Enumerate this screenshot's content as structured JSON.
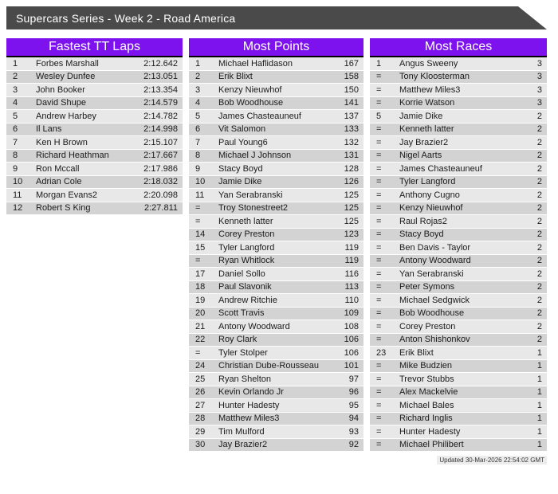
{
  "banner": {
    "title": "Supercars Series - Week 2 - Road America"
  },
  "colors": {
    "accent_purple": "#7e12ef",
    "banner_gray": "#4a4a4a",
    "row_light": "#e8e8e8",
    "row_dark": "#d3d3d3"
  },
  "tables": [
    {
      "title": "Fastest TT Laps",
      "rows": [
        [
          "1",
          "Forbes Marshall",
          "2:12.642"
        ],
        [
          "2",
          "Wesley Dunfee",
          "2:13.051"
        ],
        [
          "3",
          "John Booker",
          "2:13.354"
        ],
        [
          "4",
          "David Shupe",
          "2:14.579"
        ],
        [
          "5",
          "Andrew Harbey",
          "2:14.782"
        ],
        [
          "6",
          "Il Lans",
          "2:14.998"
        ],
        [
          "7",
          "Ken H Brown",
          "2:15.107"
        ],
        [
          "8",
          "Richard Heathman",
          "2:17.667"
        ],
        [
          "9",
          "Ron Mccall",
          "2:17.986"
        ],
        [
          "10",
          "Adrian Cole",
          "2:18.032"
        ],
        [
          "11",
          "Morgan Evans2",
          "2:20.098"
        ],
        [
          "12",
          "Robert S King",
          "2:27.811"
        ]
      ]
    },
    {
      "title": "Most Points",
      "rows": [
        [
          "1",
          "Michael Haflidason",
          "167"
        ],
        [
          "2",
          "Erik Blixt",
          "158"
        ],
        [
          "3",
          "Kenzy Nieuwhof",
          "150"
        ],
        [
          "4",
          "Bob Woodhouse",
          "141"
        ],
        [
          "5",
          "James Chasteauneuf",
          "137"
        ],
        [
          "6",
          "Vit Salomon",
          "133"
        ],
        [
          "7",
          "Paul Young6",
          "132"
        ],
        [
          "8",
          "Michael J Johnson",
          "131"
        ],
        [
          "9",
          "Stacy Boyd",
          "128"
        ],
        [
          "10",
          "Jamie Dike",
          "126"
        ],
        [
          "11",
          "Yan Serabranski",
          "125"
        ],
        [
          "=",
          "Troy Stonestreet2",
          "125"
        ],
        [
          "=",
          "Kenneth latter",
          "125"
        ],
        [
          "14",
          "Corey Preston",
          "123"
        ],
        [
          "15",
          "Tyler Langford",
          "119"
        ],
        [
          "=",
          "Ryan Whitlock",
          "119"
        ],
        [
          "17",
          "Daniel Sollo",
          "116"
        ],
        [
          "18",
          "Paul Slavonik",
          "113"
        ],
        [
          "19",
          "Andrew Ritchie",
          "110"
        ],
        [
          "20",
          "Scott Travis",
          "109"
        ],
        [
          "21",
          "Antony Woodward",
          "108"
        ],
        [
          "22",
          "Roy Clark",
          "106"
        ],
        [
          "=",
          "Tyler Stolper",
          "106"
        ],
        [
          "24",
          "Christian Dube-Rousseau",
          "101"
        ],
        [
          "25",
          "Ryan Shelton",
          "97"
        ],
        [
          "26",
          "Kevin Orlando Jr",
          "96"
        ],
        [
          "27",
          "Hunter Hadesty",
          "95"
        ],
        [
          "28",
          "Matthew Miles3",
          "94"
        ],
        [
          "29",
          "Tim Mulford",
          "93"
        ],
        [
          "30",
          "Jay Brazier2",
          "92"
        ]
      ]
    },
    {
      "title": "Most Races",
      "rows": [
        [
          "1",
          "Angus Sweeny",
          "3"
        ],
        [
          "=",
          "Tony Kloosterman",
          "3"
        ],
        [
          "=",
          "Matthew Miles3",
          "3"
        ],
        [
          "=",
          "Korrie Watson",
          "3"
        ],
        [
          "5",
          "Jamie Dike",
          "2"
        ],
        [
          "=",
          "Kenneth latter",
          "2"
        ],
        [
          "=",
          "Jay Brazier2",
          "2"
        ],
        [
          "=",
          "Nigel Aarts",
          "2"
        ],
        [
          "=",
          "James Chasteauneuf",
          "2"
        ],
        [
          "=",
          "Tyler Langford",
          "2"
        ],
        [
          "=",
          "Anthony Cugno",
          "2"
        ],
        [
          "=",
          "Kenzy Nieuwhof",
          "2"
        ],
        [
          "=",
          "Raul Rojas2",
          "2"
        ],
        [
          "=",
          "Stacy Boyd",
          "2"
        ],
        [
          "=",
          "Ben Davis - Taylor",
          "2"
        ],
        [
          "=",
          "Antony Woodward",
          "2"
        ],
        [
          "=",
          "Yan Serabranski",
          "2"
        ],
        [
          "=",
          "Peter Symons",
          "2"
        ],
        [
          "=",
          "Michael Sedgwick",
          "2"
        ],
        [
          "=",
          "Bob Woodhouse",
          "2"
        ],
        [
          "=",
          "Corey Preston",
          "2"
        ],
        [
          "=",
          "Anton Shishonkov",
          "2"
        ],
        [
          "23",
          "Erik Blixt",
          "1"
        ],
        [
          "=",
          "Mike Budzien",
          "1"
        ],
        [
          "=",
          "Trevor Stubbs",
          "1"
        ],
        [
          "=",
          "Alex Mackelvie",
          "1"
        ],
        [
          "=",
          "Michael Bales",
          "1"
        ],
        [
          "=",
          "Richard Inglis",
          "1"
        ],
        [
          "=",
          "Hunter Hadesty",
          "1"
        ],
        [
          "=",
          "Michael Philibert",
          "1"
        ]
      ]
    }
  ],
  "footer": {
    "updated": "Updated 30-Mar-2026 22:54:02 GMT"
  }
}
